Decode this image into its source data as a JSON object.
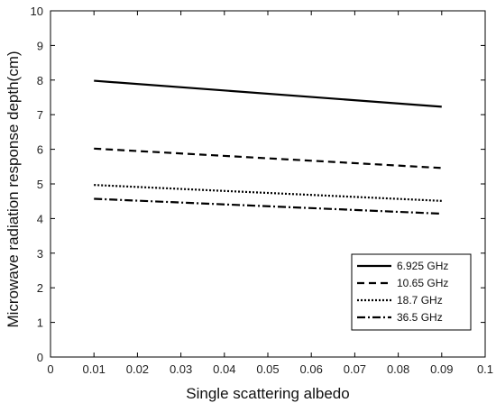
{
  "chart_data": {
    "type": "line",
    "title": "",
    "xlabel": "Single scattering albedo",
    "ylabel": "Microwave radiation response depth(cm)",
    "xlim": [
      0,
      0.1
    ],
    "ylim": [
      0,
      10
    ],
    "xticks": [
      "0",
      "0.01",
      "0.02",
      "0.03",
      "0.04",
      "0.05",
      "0.06",
      "0.07",
      "0.08",
      "0.09",
      "0.1"
    ],
    "yticks": [
      "0",
      "1",
      "2",
      "3",
      "4",
      "5",
      "6",
      "7",
      "8",
      "9",
      "10"
    ],
    "grid": false,
    "legend_position": "bottom-right",
    "x": [
      0.01,
      0.09
    ],
    "series": [
      {
        "name": "6.925 GHz",
        "style": "solid",
        "values": [
          7.98,
          7.23
        ]
      },
      {
        "name": "10.65 GHz",
        "style": "dashed",
        "values": [
          6.02,
          5.46
        ]
      },
      {
        "name": "18.7 GHz",
        "style": "dotted",
        "values": [
          4.97,
          4.51
        ]
      },
      {
        "name": "36.5 GHz",
        "style": "dashdot",
        "values": [
          4.57,
          4.14
        ]
      }
    ],
    "line_color": "#000000"
  }
}
